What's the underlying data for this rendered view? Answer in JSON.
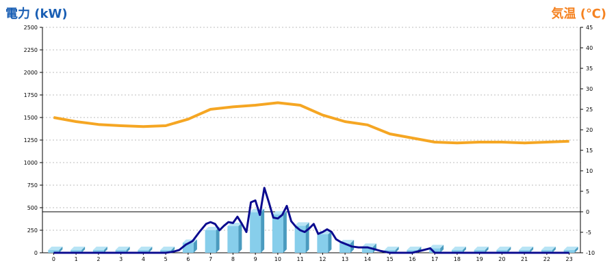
{
  "chart_data": {
    "type": "bar+line",
    "title_left": "電力 (kW)",
    "title_right": "気温 (℃)",
    "categories": [
      "0",
      "1",
      "2",
      "3",
      "4",
      "5",
      "6",
      "7",
      "8",
      "9",
      "10",
      "11",
      "12",
      "13",
      "14",
      "15",
      "16",
      "17",
      "18",
      "19",
      "20",
      "21",
      "22",
      "23"
    ],
    "y_left": {
      "min": 0,
      "max": 2500,
      "ticks": [
        "0",
        "250",
        "500",
        "750",
        "1000",
        "1250",
        "1500",
        "1750",
        "2000",
        "2250",
        "2500"
      ]
    },
    "y_right": {
      "min": -10,
      "max": 45,
      "ticks": [
        "-10",
        "-5",
        "0",
        "5",
        "10",
        "15",
        "20",
        "25",
        "30",
        "35",
        "40",
        "45"
      ]
    },
    "reference_line_y_right": 0,
    "grid": "dashed-horizontal",
    "bar_color": "#87ceeb",
    "power_line_color": "#0b0b8f",
    "temp_line_color": "#f5a623",
    "series": [
      {
        "name": "電力 (bars)",
        "axis": "left",
        "values": [
          30,
          30,
          30,
          30,
          30,
          30,
          110,
          250,
          295,
          450,
          425,
          300,
          205,
          105,
          65,
          30,
          30,
          50,
          30,
          30,
          30,
          30,
          30,
          30
        ]
      },
      {
        "name": "電力 (line)",
        "axis": "left",
        "x": [
          0,
          0.5,
          1,
          1.5,
          2,
          2.5,
          3,
          3.5,
          4,
          4.5,
          5,
          5.3,
          5.6,
          5.9,
          6.2,
          6.5,
          6.8,
          7.0,
          7.2,
          7.4,
          7.6,
          7.8,
          8.0,
          8.2,
          8.4,
          8.6,
          8.8,
          9.0,
          9.2,
          9.4,
          9.6,
          9.8,
          10.0,
          10.2,
          10.4,
          10.6,
          10.8,
          11.0,
          11.2,
          11.4,
          11.6,
          11.8,
          12.0,
          12.2,
          12.4,
          12.6,
          12.8,
          13.0,
          13.3,
          13.6,
          14.0,
          14.3,
          14.6,
          14.8,
          15.0,
          15.5,
          16.0,
          16.5,
          16.8,
          17.0,
          17.2,
          17.5,
          18,
          19,
          20,
          21,
          22,
          23
        ],
        "values": [
          0,
          0,
          0,
          0,
          0,
          0,
          0,
          0,
          0,
          0,
          0,
          10,
          30,
          90,
          130,
          230,
          320,
          340,
          320,
          250,
          300,
          340,
          330,
          400,
          320,
          230,
          560,
          580,
          420,
          720,
          560,
          390,
          380,
          420,
          520,
          350,
          290,
          250,
          230,
          270,
          320,
          210,
          230,
          260,
          230,
          150,
          120,
          100,
          70,
          60,
          60,
          40,
          20,
          10,
          0,
          0,
          0,
          30,
          50,
          0,
          0,
          0,
          0,
          0,
          0,
          0,
          0,
          0
        ]
      },
      {
        "name": "気温",
        "axis": "right",
        "x": [
          0,
          1,
          2,
          3,
          4,
          5,
          6,
          7,
          8,
          9,
          10,
          11,
          12,
          13,
          14,
          15,
          16,
          17,
          18,
          19,
          20,
          21,
          22,
          23
        ],
        "values": [
          23.0,
          22.0,
          21.3,
          21.0,
          20.8,
          21.0,
          22.6,
          25.0,
          25.6,
          26.0,
          26.6,
          26.0,
          23.6,
          22.0,
          21.2,
          19.0,
          18.0,
          17.0,
          16.8,
          17.0,
          17.0,
          16.8,
          17.0,
          17.2
        ]
      }
    ]
  }
}
